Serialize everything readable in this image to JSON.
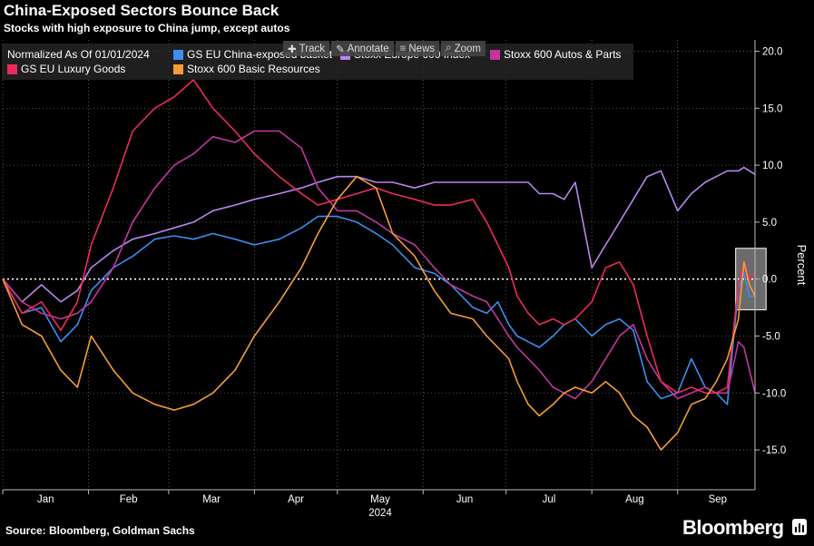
{
  "header": {
    "title": "China-Exposed Sectors Bounce Back",
    "subtitle": "Stocks with high exposure to China jump, except autos"
  },
  "toolbar": {
    "track": "Track",
    "annotate": "Annotate",
    "news": "News",
    "zoom": "Zoom"
  },
  "footer": {
    "source": "Source: Bloomberg, Goldman Sachs",
    "brand": "Bloomberg"
  },
  "chart_data": {
    "type": "line",
    "title": "China-Exposed Sectors Bounce Back",
    "subtitle": "Stocks with high exposure to China jump, except autos",
    "normalized_label": "Normalized As Of 01/01/2024",
    "ylabel": "Percent",
    "xlabel": "",
    "year_label": "2024",
    "ylim": [
      -18.5,
      21
    ],
    "yticks": [
      20.0,
      15.0,
      10.0,
      5.0,
      0.0,
      -5.0,
      -10.0,
      -15.0
    ],
    "ytick_labels": [
      "20.0",
      "15.0",
      "10.0",
      "5.0",
      "0.0",
      "-5.0",
      "-10.0",
      "-15.0"
    ],
    "x_domain": [
      0,
      272
    ],
    "x_month_ticks": [
      0,
      31,
      60,
      91,
      121,
      152,
      182,
      213,
      244
    ],
    "x_month_labels": [
      "Jan",
      "Feb",
      "Mar",
      "Apr",
      "May",
      "Jun",
      "Jul",
      "Aug",
      "Sep"
    ],
    "x_label_positions": [
      15.5,
      45.5,
      75.5,
      106,
      136.5,
      167,
      197.5,
      228.5,
      258.5
    ],
    "zero_line": 0,
    "grid": true,
    "legend_position": "top-left",
    "highlight": {
      "x_range": [
        265,
        276
      ],
      "y_range": [
        -2.7,
        2.7
      ]
    },
    "series": [
      {
        "name": "GS EU China-exposed basket",
        "color": "#3b8ff0",
        "x": [
          0,
          7,
          14,
          21,
          27,
          32,
          40,
          47,
          55,
          62,
          69,
          76,
          84,
          91,
          100,
          108,
          114,
          121,
          128,
          135,
          141,
          149,
          156,
          162,
          170,
          175,
          179,
          183,
          186,
          190,
          194,
          199,
          203,
          207,
          213,
          218,
          223,
          228,
          233,
          238,
          244,
          249,
          254,
          258,
          262,
          266,
          268,
          270,
          272
        ],
        "y": [
          0,
          -3,
          -2.5,
          -5.5,
          -4,
          -1,
          1,
          2,
          3.5,
          3.8,
          3.5,
          4,
          3.5,
          3,
          3.5,
          4.5,
          5.5,
          5.5,
          5,
          4,
          3,
          1,
          0.5,
          -0.5,
          -2.5,
          -3,
          -2,
          -4,
          -5,
          -5.5,
          -6,
          -5,
          -4,
          -3.5,
          -5,
          -4,
          -3.5,
          -4.5,
          -9,
          -10.5,
          -10,
          -7,
          -9.5,
          -10,
          -11,
          -0.8,
          0.5,
          -1.5,
          -1.5
        ]
      },
      {
        "name": "Stoxx Europe 600 Index",
        "color": "#b886ee",
        "x": [
          0,
          7,
          14,
          21,
          27,
          32,
          40,
          47,
          55,
          62,
          69,
          76,
          84,
          91,
          100,
          108,
          114,
          121,
          128,
          135,
          141,
          149,
          156,
          162,
          170,
          175,
          179,
          183,
          186,
          190,
          194,
          199,
          203,
          207,
          213,
          218,
          223,
          228,
          233,
          238,
          244,
          249,
          254,
          258,
          262,
          266,
          268,
          270,
          272
        ],
        "y": [
          0,
          -2,
          -0.5,
          -2,
          -1,
          1,
          2.5,
          3.5,
          4,
          4.5,
          5,
          6,
          6.5,
          7,
          7.5,
          8,
          8.5,
          9,
          9,
          8.5,
          8.5,
          8,
          8.5,
          8.5,
          8.5,
          8.5,
          8.5,
          8.5,
          8.5,
          8.5,
          7.5,
          7.5,
          7,
          8.5,
          1,
          3,
          5,
          7,
          9,
          9.5,
          6,
          7.5,
          8.5,
          9,
          9.5,
          9.5,
          9.8,
          9.5,
          9.2
        ]
      },
      {
        "name": "Stoxx 600 Autos & Parts",
        "color": "#c2369e",
        "x": [
          0,
          7,
          14,
          21,
          27,
          32,
          40,
          47,
          55,
          62,
          69,
          76,
          84,
          91,
          100,
          108,
          114,
          121,
          128,
          135,
          141,
          149,
          156,
          162,
          170,
          175,
          179,
          183,
          186,
          190,
          194,
          199,
          203,
          207,
          213,
          218,
          223,
          228,
          233,
          238,
          244,
          249,
          254,
          258,
          262,
          266,
          268,
          270,
          272
        ],
        "y": [
          0,
          -2,
          -3,
          -3.5,
          -3,
          -2,
          1,
          5,
          8,
          10,
          11,
          12.5,
          12,
          13,
          13,
          11.5,
          8,
          6,
          6,
          5,
          4,
          3,
          1,
          -0.5,
          -1.5,
          -2,
          -3.5,
          -5,
          -6,
          -7,
          -8,
          -9.5,
          -10,
          -10.5,
          -9,
          -7,
          -5,
          -4,
          -7,
          -9,
          -10.5,
          -10,
          -9.5,
          -10,
          -10,
          -5.5,
          -6,
          -8,
          -10
        ]
      },
      {
        "name": "GS EU Luxury Goods",
        "color": "#ee2a58",
        "x": [
          0,
          7,
          14,
          21,
          27,
          32,
          40,
          47,
          55,
          62,
          69,
          76,
          84,
          91,
          100,
          108,
          114,
          121,
          128,
          135,
          141,
          149,
          156,
          162,
          170,
          175,
          179,
          183,
          186,
          190,
          194,
          199,
          203,
          207,
          213,
          218,
          223,
          228,
          233,
          238,
          244,
          249,
          254,
          258,
          262,
          266,
          268,
          270,
          272
        ],
        "y": [
          0,
          -3,
          -2,
          -4.5,
          -2,
          3,
          8,
          13,
          15,
          16,
          17.5,
          15,
          13,
          11,
          9,
          7.5,
          6.5,
          7,
          7.5,
          8,
          7.5,
          7,
          6.5,
          6.5,
          7,
          5,
          3,
          1,
          -1.5,
          -3,
          -4,
          -3.5,
          -4,
          -3.5,
          -2,
          1,
          1.5,
          -0.5,
          -5,
          -9,
          -10,
          -9.5,
          -10,
          -10,
          -9.5,
          -0.5,
          1.5,
          0,
          0.5
        ]
      },
      {
        "name": "Stoxx 600 Basic Resources",
        "color": "#f79c36",
        "x": [
          0,
          7,
          14,
          21,
          27,
          32,
          40,
          47,
          55,
          62,
          69,
          76,
          84,
          91,
          100,
          108,
          114,
          121,
          128,
          135,
          141,
          149,
          156,
          162,
          170,
          175,
          179,
          183,
          186,
          190,
          194,
          199,
          203,
          207,
          213,
          218,
          223,
          228,
          233,
          238,
          244,
          249,
          254,
          258,
          262,
          266,
          268,
          270,
          272
        ],
        "y": [
          0,
          -4,
          -5,
          -8,
          -9.5,
          -5,
          -8,
          -10,
          -11,
          -11.5,
          -11,
          -10,
          -8,
          -5,
          -2,
          1,
          4,
          7,
          9,
          8,
          4,
          2,
          -1,
          -3,
          -3.5,
          -5,
          -6,
          -7,
          -9,
          -11,
          -12,
          -11,
          -10,
          -9.5,
          -10,
          -9,
          -10,
          -12,
          -13,
          -15,
          -13.5,
          -11,
          -10.5,
          -9,
          -7,
          -3.5,
          1.5,
          -0.5,
          -1.5
        ]
      }
    ]
  }
}
